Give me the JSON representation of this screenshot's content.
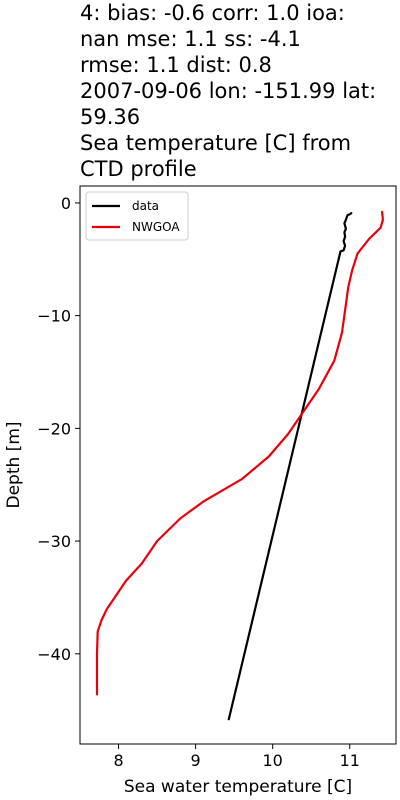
{
  "chart_data": {
    "type": "line",
    "title": "4: bias: -0.6  corr: 1.0  ioa: nan  mse: 1.1  ss: -4.1 rmse: 1.1  dist: 0.8 2007-09-06 lon: -151.99 lat: 59.36 Sea temperature [C] from CTD profile",
    "title_lines": [
      "4: bias: -0.6  corr: 1.0  ioa:",
      "nan  mse: 1.1  ss: -4.1",
      "rmse: 1.1  dist: 0.8",
      "2007-09-06 lon: -151.99 lat:",
      "59.36",
      "Sea temperature [C] from",
      "CTD profile"
    ],
    "xlabel": "Sea water temperature [C]",
    "ylabel": "Depth [m]",
    "xlim": [
      7.5,
      11.6
    ],
    "ylim": [
      -48,
      1.5
    ],
    "xticks": [
      8,
      9,
      10,
      11
    ],
    "xtick_labels": [
      "8",
      "9",
      "10",
      "11"
    ],
    "yticks": [
      0,
      -10,
      -20,
      -30,
      -40
    ],
    "ytick_labels": [
      "0",
      "−10",
      "−20",
      "−30",
      "−40"
    ],
    "grid": false,
    "legend_position": "top-left",
    "series": [
      {
        "name": "data",
        "color": "#000000",
        "points": [
          [
            11.02,
            -0.9
          ],
          [
            11.0,
            -1.0
          ],
          [
            10.97,
            -1.1
          ],
          [
            10.95,
            -1.5
          ],
          [
            10.93,
            -1.8
          ],
          [
            10.95,
            -2.3
          ],
          [
            10.93,
            -2.6
          ],
          [
            10.94,
            -3.0
          ],
          [
            10.92,
            -3.4
          ],
          [
            10.94,
            -3.8
          ],
          [
            10.92,
            -4.2
          ],
          [
            10.88,
            -4.3
          ],
          [
            9.43,
            -45.8
          ]
        ]
      },
      {
        "name": "NWGOA",
        "color": "#e8000b",
        "points": [
          [
            11.42,
            -0.8
          ],
          [
            11.43,
            -1.5
          ],
          [
            11.4,
            -2.2
          ],
          [
            11.25,
            -3.2
          ],
          [
            11.1,
            -4.5
          ],
          [
            11.03,
            -6.0
          ],
          [
            10.98,
            -7.5
          ],
          [
            10.95,
            -9.0
          ],
          [
            10.9,
            -11.5
          ],
          [
            10.8,
            -14.0
          ],
          [
            10.6,
            -16.5
          ],
          [
            10.4,
            -18.5
          ],
          [
            10.2,
            -20.5
          ],
          [
            9.95,
            -22.5
          ],
          [
            9.6,
            -24.5
          ],
          [
            9.1,
            -26.5
          ],
          [
            8.8,
            -28.0
          ],
          [
            8.5,
            -30.0
          ],
          [
            8.3,
            -32.0
          ],
          [
            8.1,
            -33.5
          ],
          [
            7.95,
            -35.0
          ],
          [
            7.85,
            -36.0
          ],
          [
            7.78,
            -37.0
          ],
          [
            7.73,
            -38.0
          ],
          [
            7.72,
            -40.0
          ],
          [
            7.72,
            -42.0
          ],
          [
            7.72,
            -43.6
          ]
        ]
      }
    ]
  }
}
